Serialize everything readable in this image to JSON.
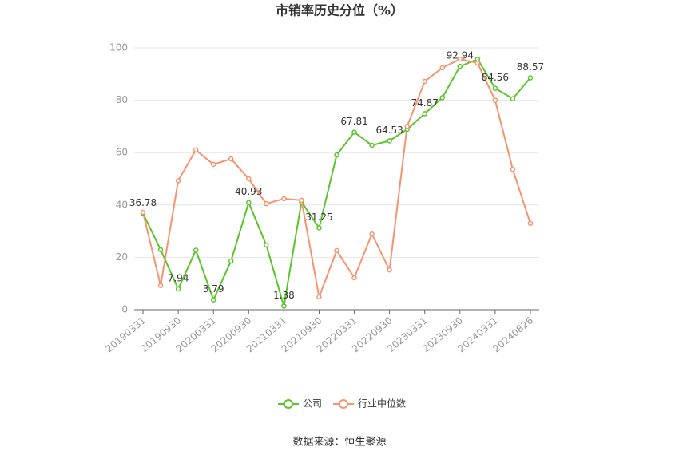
{
  "chart_data": {
    "type": "line",
    "title": "市销率历史分位（%）",
    "source": "数据来源：恒生聚源",
    "categories": [
      "20190331",
      null,
      "20190930",
      null,
      "20200331",
      null,
      "20200930",
      null,
      "20210331",
      null,
      "20210930",
      null,
      "20220331",
      null,
      "20220930",
      null,
      "20230331",
      null,
      "20230930",
      null,
      "20240331",
      null,
      "20240826"
    ],
    "series": [
      {
        "name": "公司",
        "color": "#5ac42b",
        "values": [
          36.78,
          22.9,
          7.94,
          22.7,
          3.79,
          18.6,
          40.93,
          24.7,
          1.38,
          41.2,
          31.25,
          59.1,
          67.81,
          62.8,
          64.53,
          68.9,
          74.87,
          81.0,
          92.94,
          95.7,
          84.56,
          80.6,
          88.57
        ],
        "value_labels": [
          "36.78",
          null,
          "7.94",
          null,
          "3.79",
          null,
          "40.93",
          null,
          "1.38",
          null,
          "31.25",
          null,
          "67.81",
          null,
          "64.53",
          null,
          "74.87",
          null,
          "92.94",
          null,
          "84.56",
          null,
          "88.57"
        ]
      },
      {
        "name": "行业中位数",
        "color": "#f7936f",
        "values": [
          37.2,
          9.2,
          49.3,
          61.0,
          55.5,
          57.6,
          50.0,
          40.5,
          42.4,
          41.8,
          4.9,
          22.6,
          12.2,
          28.9,
          15.2,
          70.0,
          87.2,
          92.4,
          95.7,
          94.2,
          80.0,
          53.6,
          33.0
        ]
      }
    ],
    "ylim": [
      0,
      100
    ],
    "yticks": [
      0,
      20,
      40,
      60,
      80,
      100
    ],
    "grid": true,
    "legend": "bottom"
  }
}
